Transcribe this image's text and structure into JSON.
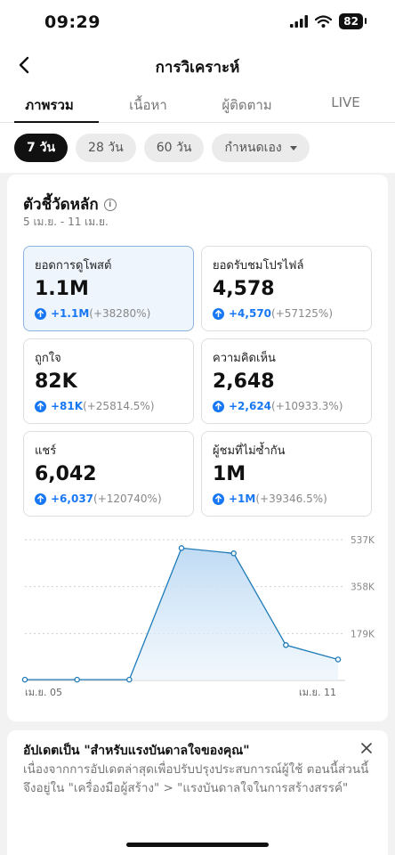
{
  "status_bar": {
    "time": "09:29",
    "battery": "82"
  },
  "header": {
    "title": "การวิเคราะห์"
  },
  "tabs": [
    {
      "label": "ภาพรวม",
      "active": true
    },
    {
      "label": "เนื้อหา",
      "active": false
    },
    {
      "label": "ผู้ติดตาม",
      "active": false
    },
    {
      "label": "LIVE",
      "active": false
    }
  ],
  "filters": [
    {
      "label": "7 วัน",
      "active": true
    },
    {
      "label": "28 วัน",
      "active": false
    },
    {
      "label": "60 วัน",
      "active": false
    },
    {
      "label": "กำหนดเอง",
      "active": false
    }
  ],
  "metrics_section": {
    "title": "ตัวชี้วัดหลัก",
    "date_range": "5 เม.ย. - 11 เม.ย.",
    "cards": [
      {
        "label": "ยอดการดูโพสต์",
        "value": "1.1M",
        "delta": "+1.1M",
        "delta_pct": "(+38280%)",
        "selected": true
      },
      {
        "label": "ยอดรับชมโปรไฟล์",
        "value": "4,578",
        "delta": "+4,570",
        "delta_pct": "(+57125%)"
      },
      {
        "label": "ถูกใจ",
        "value": "82K",
        "delta": "+81K",
        "delta_pct": "(+25814.5%)"
      },
      {
        "label": "ความคิดเห็น",
        "value": "2,648",
        "delta": "+2,624",
        "delta_pct": "(+10933.3%)"
      },
      {
        "label": "แชร์",
        "value": "6,042",
        "delta": "+6,037",
        "delta_pct": "(+120740%)"
      },
      {
        "label": "ผู้ชมที่ไม่ซ้ำกัน",
        "value": "1M",
        "delta": "+1M",
        "delta_pct": "(+39346.5%)"
      }
    ]
  },
  "chart_data": {
    "type": "area",
    "x": [
      "เม.ย. 05",
      "เม.ย. 06",
      "เม.ย. 07",
      "เม.ย. 08",
      "เม.ย. 09",
      "เม.ย. 10",
      "เม.ย. 11"
    ],
    "values": [
      3000,
      3000,
      3000,
      505000,
      485000,
      135000,
      80000
    ],
    "x_tick_labels": [
      "เม.ย. 05",
      "เม.ย. 11"
    ],
    "y_ticks": [
      179000,
      358000,
      537000
    ],
    "y_tick_labels": [
      "179K",
      "358K",
      "537K"
    ],
    "ylim": [
      0,
      537000
    ],
    "grid": true,
    "color": "#1e7bb8"
  },
  "notice": {
    "title": "อัปเดตเป็น \"สำหรับแรงบันดาลใจของคุณ\"",
    "body": "เนื่องจากการอัปเดตล่าสุดเพื่อปรับปรุงประสบการณ์ผู้ใช้ ตอนนี้ส่วนนี้จึงอยู่ใน \"เครื่องมือผู้สร้าง\" > \"แรงบันดาลใจในการสร้างสรรค์\""
  }
}
